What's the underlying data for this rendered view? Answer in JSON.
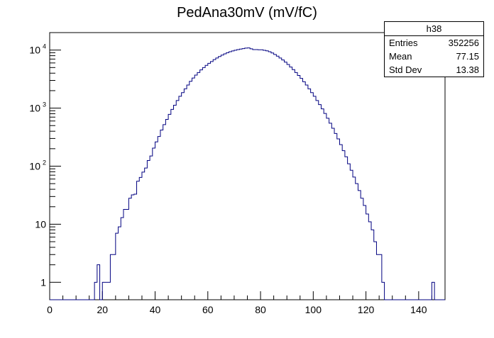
{
  "chart_data": {
    "type": "histogram",
    "title": "PedAna30mV (mV/fC)",
    "xlabel": "",
    "ylabel": "",
    "xlim": [
      0,
      150
    ],
    "ylim": [
      0.5,
      20000
    ],
    "y_scale": "log",
    "bin_width": 1,
    "line_color": "#000080",
    "x_ticks": [
      "0",
      "20",
      "40",
      "60",
      "80",
      "100",
      "120",
      "140"
    ],
    "x_tick_values": [
      0,
      20,
      40,
      60,
      80,
      100,
      120,
      140
    ],
    "y_ticks": [
      {
        "value": 1,
        "base": "1",
        "exp": ""
      },
      {
        "value": 10,
        "base": "10",
        "exp": ""
      },
      {
        "value": 100,
        "base": "10",
        "exp": "2"
      },
      {
        "value": 1000,
        "base": "10",
        "exp": "3"
      },
      {
        "value": 10000,
        "base": "10",
        "exp": "4"
      }
    ],
    "bins": [
      [
        17,
        1
      ],
      [
        18,
        2
      ],
      [
        19,
        0
      ],
      [
        20,
        1
      ],
      [
        21,
        1
      ],
      [
        22,
        1
      ],
      [
        23,
        3
      ],
      [
        24,
        3
      ],
      [
        25,
        7
      ],
      [
        26,
        9
      ],
      [
        27,
        13
      ],
      [
        28,
        18
      ],
      [
        29,
        18
      ],
      [
        30,
        28
      ],
      [
        31,
        32
      ],
      [
        32,
        33
      ],
      [
        33,
        55
      ],
      [
        34,
        64
      ],
      [
        35,
        79
      ],
      [
        36,
        93
      ],
      [
        37,
        125
      ],
      [
        38,
        150
      ],
      [
        39,
        205
      ],
      [
        40,
        262
      ],
      [
        41,
        325
      ],
      [
        42,
        420
      ],
      [
        43,
        520
      ],
      [
        44,
        640
      ],
      [
        45,
        780
      ],
      [
        46,
        950
      ],
      [
        47,
        1120
      ],
      [
        48,
        1350
      ],
      [
        49,
        1600
      ],
      [
        50,
        1850
      ],
      [
        51,
        2150
      ],
      [
        52,
        2500
      ],
      [
        53,
        2900
      ],
      [
        54,
        3300
      ],
      [
        55,
        3700
      ],
      [
        56,
        4100
      ],
      [
        57,
        4550
      ],
      [
        58,
        5000
      ],
      [
        59,
        5450
      ],
      [
        60,
        5900
      ],
      [
        61,
        6350
      ],
      [
        62,
        6850
      ],
      [
        63,
        7300
      ],
      [
        64,
        7750
      ],
      [
        65,
        8200
      ],
      [
        66,
        8600
      ],
      [
        67,
        9000
      ],
      [
        68,
        9350
      ],
      [
        69,
        9650
      ],
      [
        70,
        9950
      ],
      [
        71,
        10200
      ],
      [
        72,
        10400
      ],
      [
        73,
        10600
      ],
      [
        74,
        10800
      ],
      [
        75,
        10900
      ],
      [
        76,
        10500
      ],
      [
        77,
        10200
      ],
      [
        78,
        10200
      ],
      [
        79,
        10100
      ],
      [
        80,
        10100
      ],
      [
        81,
        9900
      ],
      [
        82,
        9700
      ],
      [
        83,
        9350
      ],
      [
        84,
        8900
      ],
      [
        85,
        8400
      ],
      [
        86,
        7850
      ],
      [
        87,
        7300
      ],
      [
        88,
        6750
      ],
      [
        89,
        6200
      ],
      [
        90,
        5650
      ],
      [
        91,
        5100
      ],
      [
        92,
        4600
      ],
      [
        93,
        4100
      ],
      [
        94,
        3650
      ],
      [
        95,
        3250
      ],
      [
        96,
        2850
      ],
      [
        97,
        2500
      ],
      [
        98,
        2150
      ],
      [
        99,
        1850
      ],
      [
        100,
        1600
      ],
      [
        101,
        1350
      ],
      [
        102,
        1150
      ],
      [
        103,
        970
      ],
      [
        104,
        810
      ],
      [
        105,
        670
      ],
      [
        106,
        550
      ],
      [
        107,
        450
      ],
      [
        108,
        365
      ],
      [
        109,
        295
      ],
      [
        110,
        235
      ],
      [
        111,
        185
      ],
      [
        112,
        145
      ],
      [
        113,
        110
      ],
      [
        114,
        85
      ],
      [
        115,
        65
      ],
      [
        116,
        50
      ],
      [
        117,
        38
      ],
      [
        118,
        28
      ],
      [
        119,
        21
      ],
      [
        120,
        15
      ],
      [
        121,
        11
      ],
      [
        122,
        8
      ],
      [
        123,
        5
      ],
      [
        124,
        3
      ],
      [
        125,
        3
      ],
      [
        126,
        1
      ],
      [
        127,
        0
      ],
      [
        145,
        1
      ]
    ]
  },
  "stats": {
    "name": "h38",
    "rows": [
      {
        "label": "Entries",
        "value": "352256"
      },
      {
        "label": "Mean",
        "value": "77.15"
      },
      {
        "label": "Std Dev",
        "value": "13.38"
      }
    ]
  }
}
